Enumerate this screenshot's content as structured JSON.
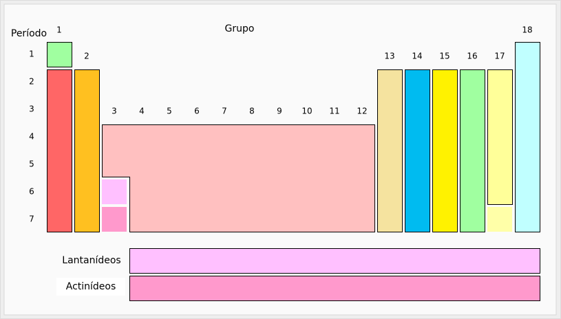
{
  "header": {
    "period_label": "Período",
    "group_label": "Grupo"
  },
  "groups": [
    "1",
    "2",
    "3",
    "4",
    "5",
    "6",
    "7",
    "8",
    "9",
    "10",
    "11",
    "12",
    "13",
    "14",
    "15",
    "16",
    "17",
    "18"
  ],
  "periods": [
    "1",
    "2",
    "3",
    "4",
    "5",
    "6",
    "7"
  ],
  "series_labels": {
    "lanthanides": "Lantanídeos",
    "actinides": "Actinídeos"
  }
}
